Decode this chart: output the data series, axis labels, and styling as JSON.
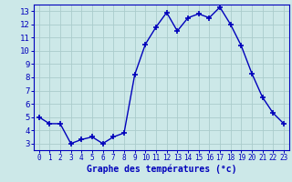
{
  "hours": [
    0,
    1,
    2,
    3,
    4,
    5,
    6,
    7,
    8,
    9,
    10,
    11,
    12,
    13,
    14,
    15,
    16,
    17,
    18,
    19,
    20,
    21,
    22,
    23
  ],
  "temperatures": [
    5.0,
    4.5,
    4.5,
    3.0,
    3.3,
    3.5,
    3.0,
    3.5,
    3.8,
    8.2,
    10.5,
    11.8,
    12.9,
    11.5,
    12.5,
    12.8,
    12.5,
    13.3,
    12.0,
    10.4,
    8.3,
    6.5,
    5.3,
    4.5
  ],
  "xlabel": "Graphe des températures (°c)",
  "ylim": [
    2.5,
    13.5
  ],
  "xlim": [
    -0.5,
    23.5
  ],
  "yticks": [
    3,
    4,
    5,
    6,
    7,
    8,
    9,
    10,
    11,
    12,
    13
  ],
  "xticks": [
    0,
    1,
    2,
    3,
    4,
    5,
    6,
    7,
    8,
    9,
    10,
    11,
    12,
    13,
    14,
    15,
    16,
    17,
    18,
    19,
    20,
    21,
    22,
    23
  ],
  "xtick_labels": [
    "0",
    "1",
    "2",
    "3",
    "4",
    "5",
    "6",
    "7",
    "8",
    "9",
    "10",
    "11",
    "12",
    "13",
    "14",
    "15",
    "16",
    "17",
    "18",
    "19",
    "20",
    "21",
    "22",
    "23"
  ],
  "line_color": "#0000bb",
  "marker": "+",
  "marker_size": 5,
  "bg_color": "#cce8e8",
  "grid_color": "#aacccc",
  "axes_color": "#0000bb",
  "xlabel_color": "#0000bb",
  "tick_fontsize": 5.5,
  "ytick_fontsize": 6.5
}
